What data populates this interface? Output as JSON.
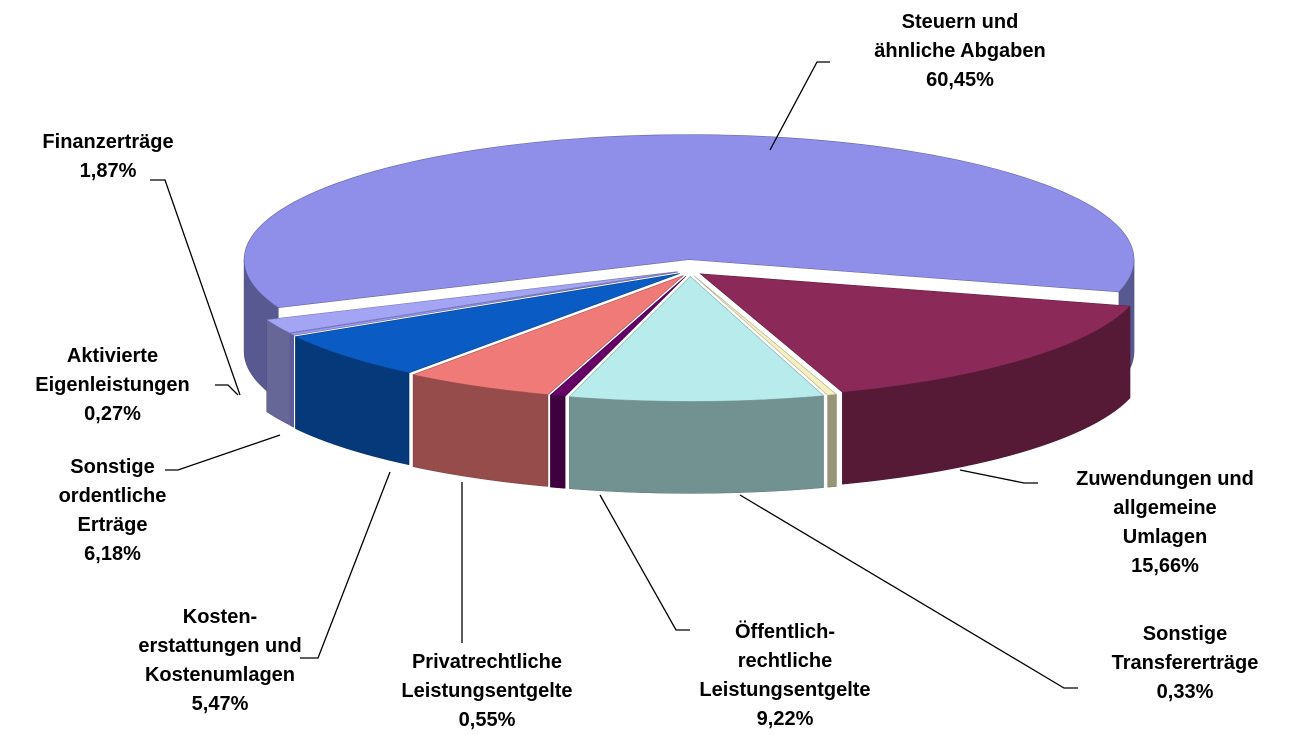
{
  "chart_data": {
    "type": "pie3d",
    "categories": [
      "Steuern und ähnliche Abgaben",
      "Zuwendungen und allgemeine Umlagen",
      "Sonstige Transfererträge",
      "Öffentlich-rechtliche Leistungsentgelte",
      "Privatrechtliche Leistungsentgelte",
      "Kosten-erstattungen und Kostenumlagen",
      "Sonstige ordentliche Erträge",
      "Aktivierte Eigenleistungen",
      "Finanzerträge"
    ],
    "values": [
      60.45,
      15.66,
      0.33,
      9.22,
      0.55,
      5.47,
      6.18,
      0.27,
      1.87
    ],
    "value_labels": [
      "60,45%",
      "15,66%",
      "0,33%",
      "9,22%",
      "0,55%",
      "5,47%",
      "6,18%",
      "0,27%",
      "1,87%"
    ],
    "colors": [
      "#8f8fea",
      "#8b2a58",
      "#f4f0c0",
      "#b8ecec",
      "#660066",
      "#f07a78",
      "#0a5cc4",
      "#9999ff",
      "#a4a4f4"
    ]
  }
}
